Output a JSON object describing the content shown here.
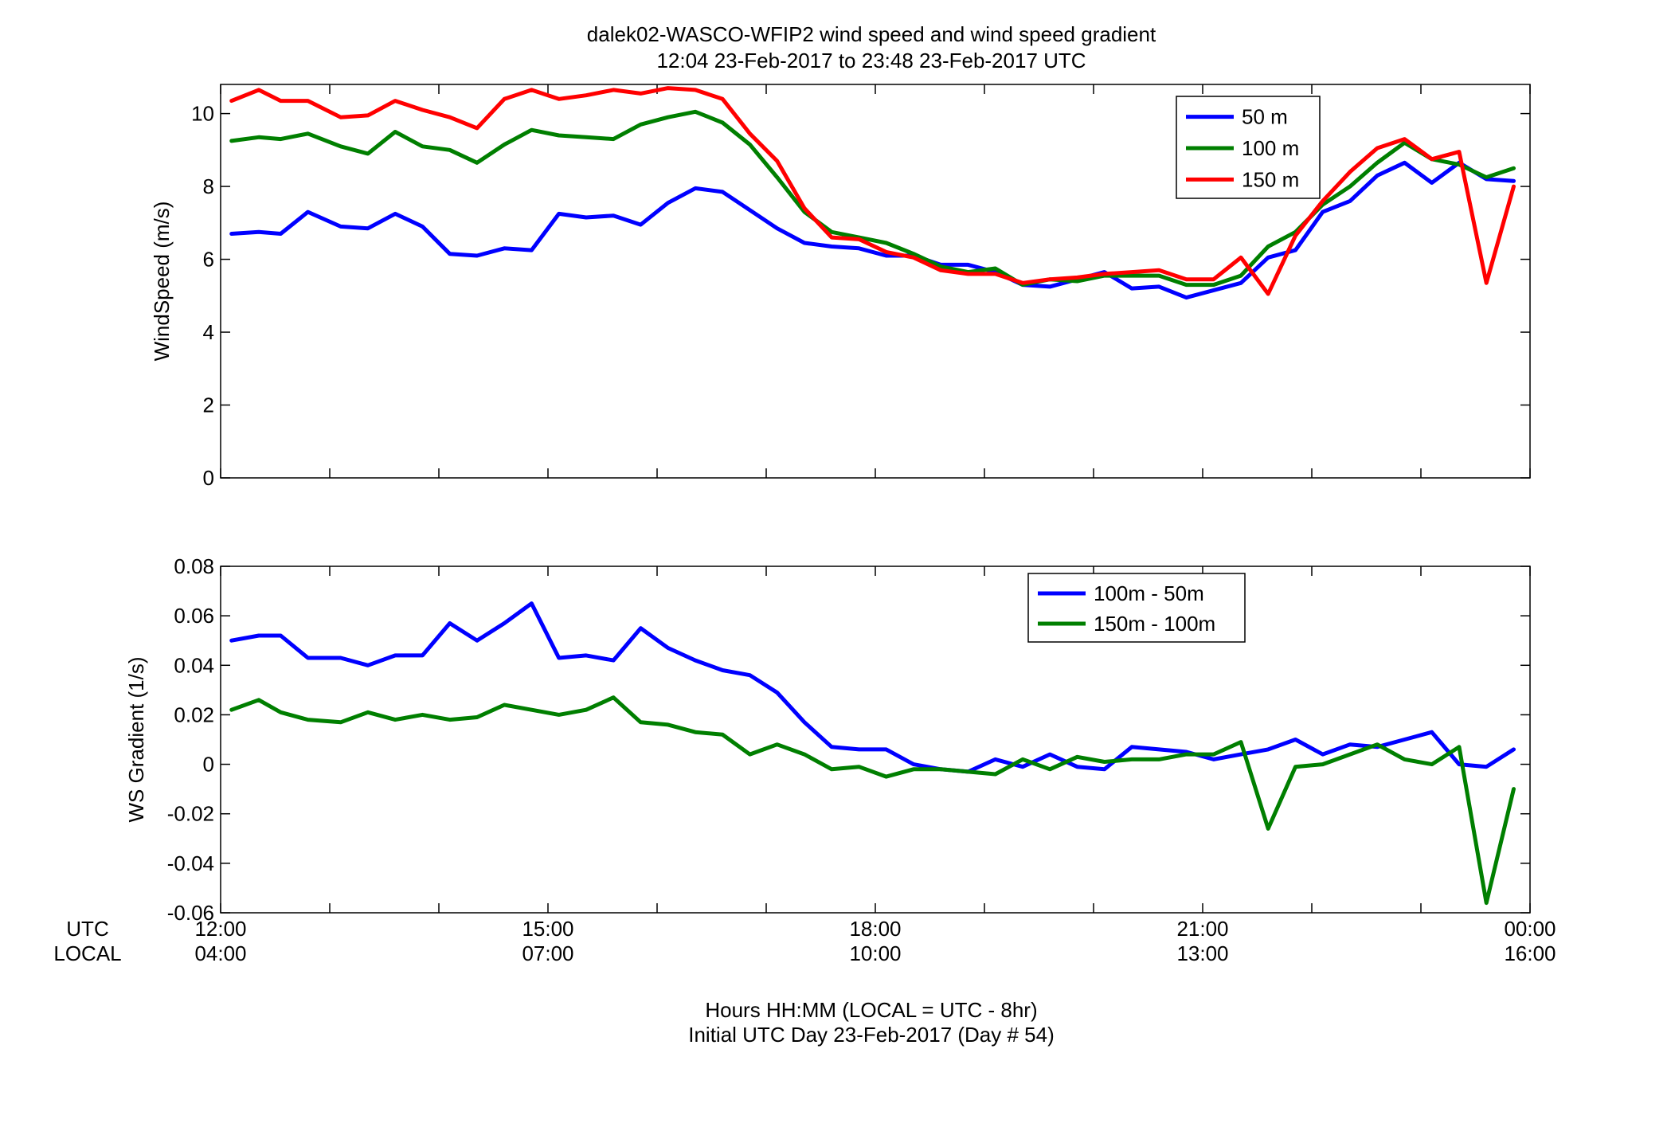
{
  "figure": {
    "title_line1": "dalek02-WASCO-WFIP2  wind speed and wind speed gradient",
    "title_line2": "12:04 23-Feb-2017 to 23:48 23-Feb-2017  UTC",
    "xlabel_line1": "Hours HH:MM  (LOCAL = UTC - 8hr)",
    "xlabel_line2": "Initial UTC Day 23-Feb-2017 (Day # 54)",
    "row_label_utc": "UTC",
    "row_label_local": "LOCAL",
    "utc_ticks": [
      "12:00",
      "15:00",
      "18:00",
      "21:00",
      "00:00"
    ],
    "local_ticks": [
      "04:00",
      "07:00",
      "10:00",
      "13:00",
      "16:00"
    ]
  },
  "colors": {
    "blue": "#0000ff",
    "green": "#007f00",
    "red": "#ff0000"
  },
  "chart_data": [
    {
      "type": "line",
      "ylabel": "WindSpeed (m/s)",
      "xlim": [
        12.0,
        24.0
      ],
      "ylim": [
        0,
        10.8
      ],
      "yticks": [
        0,
        2,
        4,
        6,
        8,
        10
      ],
      "ytick_labels": [
        "0",
        "2",
        "4",
        "6",
        "8",
        "10"
      ],
      "x_unit": "hours UTC",
      "grid": false,
      "legend_position": "top-right",
      "x": [
        12.1,
        12.35,
        12.55,
        12.8,
        13.1,
        13.35,
        13.6,
        13.85,
        14.1,
        14.35,
        14.6,
        14.85,
        15.1,
        15.35,
        15.6,
        15.85,
        16.1,
        16.35,
        16.6,
        16.85,
        17.1,
        17.35,
        17.6,
        17.85,
        18.1,
        18.35,
        18.6,
        18.85,
        19.1,
        19.35,
        19.6,
        19.85,
        20.1,
        20.35,
        20.6,
        20.85,
        21.1,
        21.35,
        21.6,
        21.85,
        22.1,
        22.35,
        22.6,
        22.85,
        23.1,
        23.35,
        23.6,
        23.85
      ],
      "series": [
        {
          "name": "50 m",
          "color": "#0000ff",
          "values": [
            6.7,
            6.75,
            6.7,
            7.3,
            6.9,
            6.85,
            7.25,
            6.9,
            6.15,
            6.1,
            6.3,
            6.25,
            7.25,
            7.15,
            7.2,
            6.95,
            7.55,
            7.95,
            7.85,
            7.35,
            6.85,
            6.45,
            6.35,
            6.3,
            6.1,
            6.1,
            5.85,
            5.85,
            5.65,
            5.3,
            5.25,
            5.45,
            5.65,
            5.2,
            5.25,
            4.95,
            5.15,
            5.35,
            6.05,
            6.25,
            7.3,
            7.6,
            8.3,
            8.65,
            8.1,
            8.65,
            8.2,
            8.15
          ]
        },
        {
          "name": "100 m",
          "color": "#007f00",
          "values": [
            9.25,
            9.35,
            9.3,
            9.45,
            9.1,
            8.9,
            9.5,
            9.1,
            9.0,
            8.65,
            9.15,
            9.55,
            9.4,
            9.35,
            9.3,
            9.7,
            9.9,
            10.05,
            9.75,
            9.15,
            8.25,
            7.3,
            6.75,
            6.6,
            6.45,
            6.15,
            5.8,
            5.65,
            5.75,
            5.3,
            5.45,
            5.4,
            5.55,
            5.55,
            5.55,
            5.3,
            5.3,
            5.55,
            6.35,
            6.75,
            7.5,
            8.0,
            8.65,
            9.2,
            8.75,
            8.6,
            8.25,
            8.5
          ]
        },
        {
          "name": "150 m",
          "color": "#ff0000",
          "values": [
            10.35,
            10.65,
            10.35,
            10.35,
            9.9,
            9.95,
            10.35,
            10.1,
            9.9,
            9.6,
            10.4,
            10.65,
            10.4,
            10.5,
            10.65,
            10.55,
            10.7,
            10.65,
            10.4,
            9.45,
            8.7,
            7.4,
            6.6,
            6.55,
            6.2,
            6.05,
            5.7,
            5.6,
            5.6,
            5.35,
            5.45,
            5.5,
            5.6,
            5.65,
            5.7,
            5.45,
            5.45,
            6.05,
            5.05,
            6.65,
            7.6,
            8.4,
            9.05,
            9.3,
            8.75,
            8.95,
            5.35,
            8.0
          ]
        }
      ]
    },
    {
      "type": "line",
      "ylabel": "WS Gradient (1/s)",
      "xlim": [
        12.0,
        24.0
      ],
      "ylim": [
        -0.06,
        0.08
      ],
      "yticks": [
        -0.06,
        -0.04,
        -0.02,
        0,
        0.02,
        0.04,
        0.06,
        0.08
      ],
      "ytick_labels": [
        "-0.06",
        "-0.04",
        "-0.02",
        "0",
        "0.02",
        "0.04",
        "0.06",
        "0.08"
      ],
      "x_unit": "hours UTC",
      "grid": false,
      "legend_position": "top-right",
      "x": [
        12.1,
        12.35,
        12.55,
        12.8,
        13.1,
        13.35,
        13.6,
        13.85,
        14.1,
        14.35,
        14.6,
        14.85,
        15.1,
        15.35,
        15.6,
        15.85,
        16.1,
        16.35,
        16.6,
        16.85,
        17.1,
        17.35,
        17.6,
        17.85,
        18.1,
        18.35,
        18.6,
        18.85,
        19.1,
        19.35,
        19.6,
        19.85,
        20.1,
        20.35,
        20.6,
        20.85,
        21.1,
        21.35,
        21.6,
        21.85,
        22.1,
        22.35,
        22.6,
        22.85,
        23.1,
        23.35,
        23.6,
        23.85
      ],
      "series": [
        {
          "name": "100m - 50m",
          "color": "#0000ff",
          "values": [
            0.05,
            0.052,
            0.052,
            0.043,
            0.043,
            0.04,
            0.044,
            0.044,
            0.057,
            0.05,
            0.057,
            0.065,
            0.043,
            0.044,
            0.042,
            0.055,
            0.047,
            0.042,
            0.038,
            0.036,
            0.029,
            0.017,
            0.007,
            0.006,
            0.006,
            0.0,
            -0.002,
            -0.003,
            0.002,
            -0.001,
            0.004,
            -0.001,
            -0.002,
            0.007,
            0.006,
            0.005,
            0.002,
            0.004,
            0.006,
            0.01,
            0.004,
            0.008,
            0.007,
            0.01,
            0.013,
            0.0,
            -0.001,
            0.006
          ]
        },
        {
          "name": "150m - 100m",
          "color": "#007f00",
          "values": [
            0.022,
            0.026,
            0.021,
            0.018,
            0.017,
            0.021,
            0.018,
            0.02,
            0.018,
            0.019,
            0.024,
            0.022,
            0.02,
            0.022,
            0.027,
            0.017,
            0.016,
            0.013,
            0.012,
            0.004,
            0.008,
            0.004,
            -0.002,
            -0.001,
            -0.005,
            -0.002,
            -0.002,
            -0.003,
            -0.004,
            0.002,
            -0.002,
            0.003,
            0.001,
            0.002,
            0.002,
            0.004,
            0.004,
            0.009,
            -0.026,
            -0.001,
            0.0,
            0.004,
            0.008,
            0.002,
            0.0,
            0.007,
            -0.056,
            -0.01
          ]
        }
      ]
    }
  ]
}
